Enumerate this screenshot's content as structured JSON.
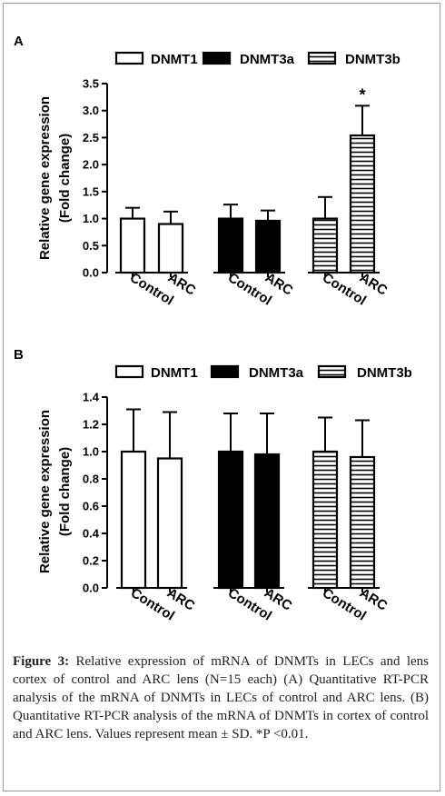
{
  "chart_data": [
    {
      "panel_label": "A",
      "type": "bar",
      "legend": [
        "DNMT1",
        "DNMT3a",
        "DNMT3b"
      ],
      "legend_fills": [
        "white",
        "black",
        "horizontal-stripes"
      ],
      "ylabel_line1": "Relative gene expression",
      "ylabel_line2": "(Fold change)",
      "ylim": [
        0,
        3.5
      ],
      "yticks": [
        "0.0",
        "0.5",
        "1.0",
        "1.5",
        "2.0",
        "2.5",
        "3.0",
        "3.5"
      ],
      "categories": [
        "Control",
        "ARC"
      ],
      "series": [
        {
          "name": "DNMT1",
          "values": [
            1.0,
            0.9
          ],
          "errors": [
            0.2,
            0.23
          ]
        },
        {
          "name": "DNMT3a",
          "values": [
            1.0,
            0.96
          ],
          "errors": [
            0.26,
            0.19
          ]
        },
        {
          "name": "DNMT3b",
          "values": [
            1.0,
            2.54
          ],
          "errors": [
            0.4,
            0.55
          ]
        }
      ],
      "significance_marker": "*"
    },
    {
      "panel_label": "B",
      "type": "bar",
      "legend": [
        "DNMT1",
        "DNMT3a",
        "DNMT3b"
      ],
      "legend_fills": [
        "white",
        "black",
        "horizontal-stripes"
      ],
      "ylabel_line1": "Relative gene expression",
      "ylabel_line2": "(Fold change)",
      "ylim": [
        0,
        1.4
      ],
      "yticks": [
        "0.0",
        "0.2",
        "0.4",
        "0.6",
        "0.8",
        "1.0",
        "1.2",
        "1.4"
      ],
      "categories": [
        "Control",
        "ARC"
      ],
      "series": [
        {
          "name": "DNMT1",
          "values": [
            1.0,
            0.95
          ],
          "errors": [
            0.31,
            0.34
          ]
        },
        {
          "name": "DNMT3a",
          "values": [
            1.0,
            0.98
          ],
          "errors": [
            0.28,
            0.3
          ]
        },
        {
          "name": "DNMT3b",
          "values": [
            1.0,
            0.96
          ],
          "errors": [
            0.25,
            0.27
          ]
        }
      ]
    }
  ],
  "caption": {
    "label": "Figure 3:",
    "text": " Relative expression of mRNA of DNMTs in LECs and lens cortex of control and ARC lens (N=15 each) (A) Quantitative RT-PCR analysis of the mRNA of DNMTs in LECs of control and ARC lens. (B) Quantitative RT-PCR analysis of the mRNA of DNMTs in cortex of control and ARC lens. Values represent mean ± SD. *P <0.01."
  }
}
